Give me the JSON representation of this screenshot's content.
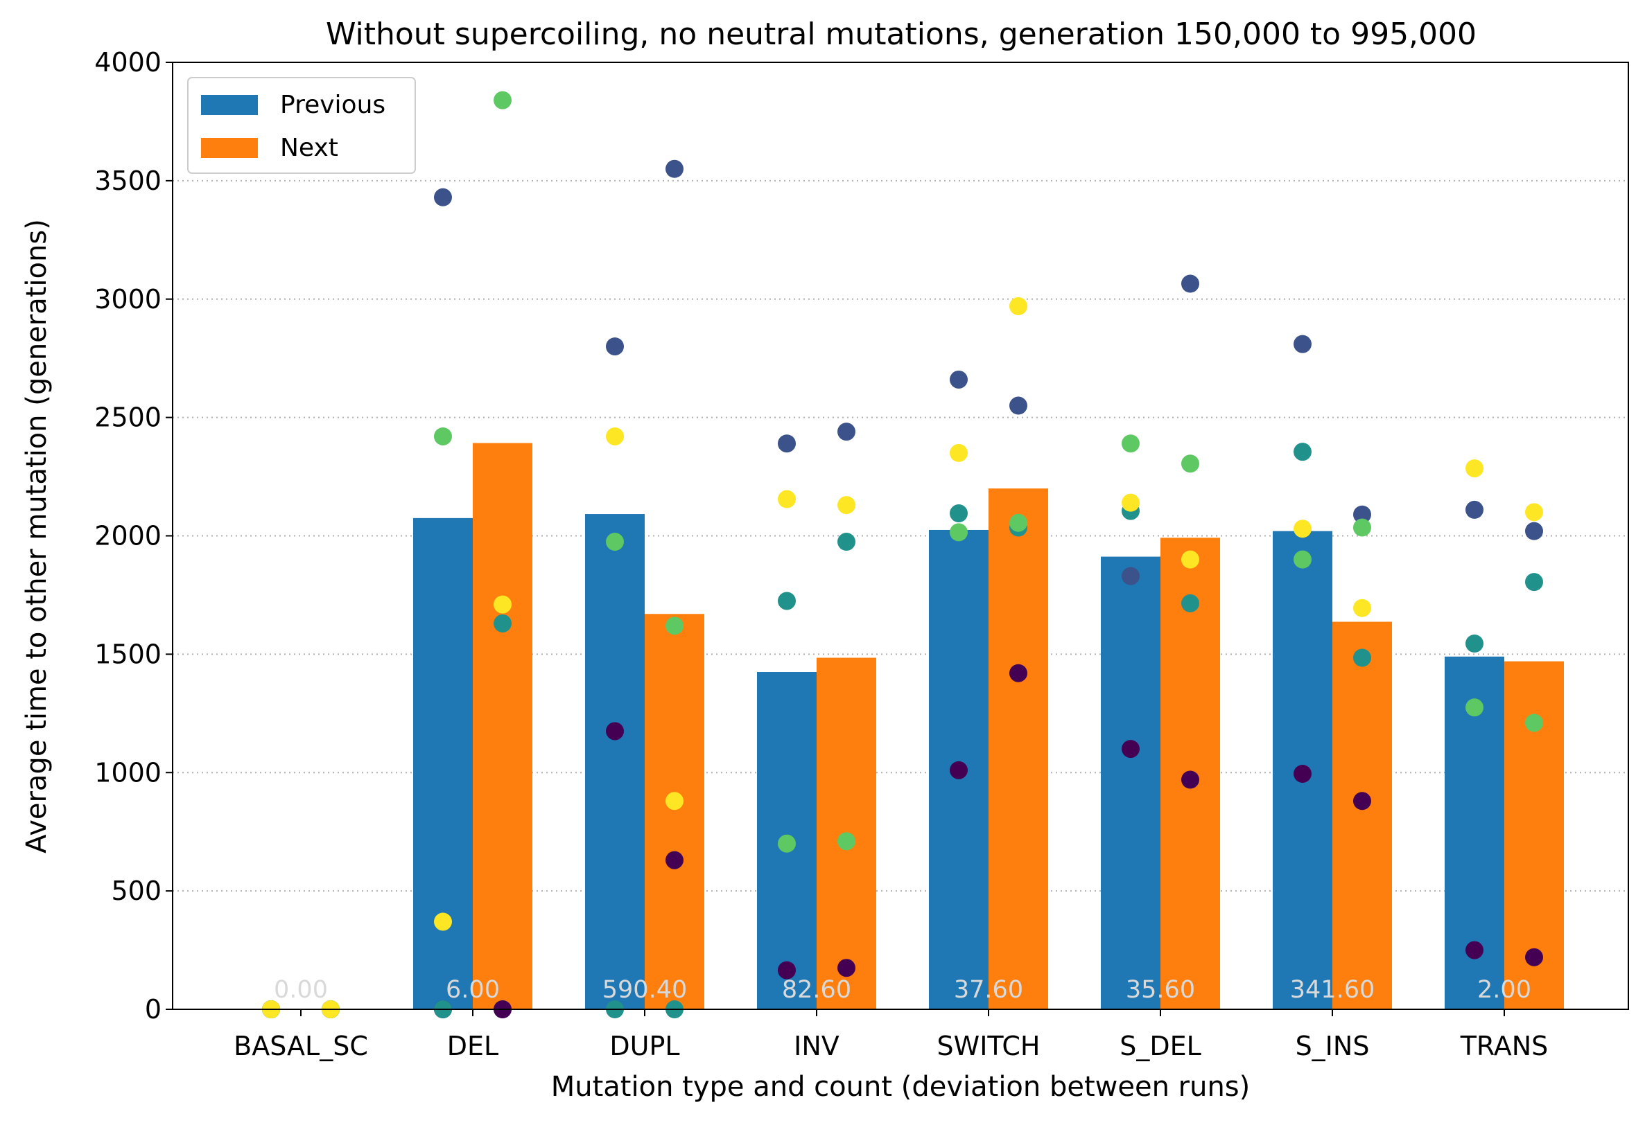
{
  "chart_data": {
    "type": "bar",
    "title": "Without supercoiling, no neutral mutations, generation 150,000 to 995,000",
    "xlabel": "Mutation type and count (deviation between runs)",
    "ylabel": "Average time to other mutation (generations)",
    "categories": [
      "BASAL_SC",
      "DEL",
      "DUPL",
      "INV",
      "SWITCH",
      "S_DEL",
      "S_INS",
      "TRANS"
    ],
    "count_labels": [
      "0.00",
      "6.00",
      "590.40",
      "82.60",
      "37.60",
      "35.60",
      "341.60",
      "2.00"
    ],
    "ylim": [
      0,
      4000
    ],
    "yticks": [
      0,
      500,
      1000,
      1500,
      2000,
      2500,
      3000,
      3500,
      4000
    ],
    "ytick_labels": [
      "0",
      "500",
      "1000",
      "1500",
      "2000",
      "2500",
      "3000",
      "3500",
      "4000"
    ],
    "grid": "horizontal dotted",
    "legend_position": "top-left",
    "series": [
      {
        "name": "Previous",
        "color": "#1f77b4",
        "values": [
          0,
          2075,
          2092,
          1425,
          2025,
          1912,
          2020,
          1490
        ],
        "run_points": [
          [
            0,
            0,
            0,
            0,
            0
          ],
          [
            3430,
            0,
            0,
            2420,
            370
          ],
          [
            2800,
            1175,
            0,
            1975,
            2420
          ],
          [
            2390,
            165,
            1725,
            700,
            2155
          ],
          [
            2660,
            1010,
            2095,
            2015,
            2350
          ],
          [
            1830,
            1100,
            2105,
            2390,
            2140
          ],
          [
            2810,
            995,
            2355,
            1900,
            2030
          ],
          [
            2110,
            250,
            1545,
            1275,
            2285
          ]
        ]
      },
      {
        "name": "Next",
        "color": "#ff7f0e",
        "values": [
          0,
          2392,
          1670,
          1485,
          2200,
          1992,
          1637,
          1470
        ],
        "run_points": [
          [
            0,
            0,
            0,
            0,
            0
          ],
          [
            0,
            0,
            1630,
            3840,
            1710
          ],
          [
            3550,
            630,
            0,
            1620,
            880
          ],
          [
            2440,
            175,
            1975,
            710,
            2130
          ],
          [
            2550,
            1420,
            2035,
            2055,
            2970
          ],
          [
            3065,
            970,
            1715,
            2305,
            1900
          ],
          [
            2090,
            880,
            1485,
            2035,
            1695
          ],
          [
            2020,
            220,
            1805,
            1210,
            2100
          ]
        ]
      }
    ],
    "run_colors": [
      "#3b528b",
      "#440154",
      "#21918c",
      "#5ec962",
      "#fde725"
    ]
  }
}
